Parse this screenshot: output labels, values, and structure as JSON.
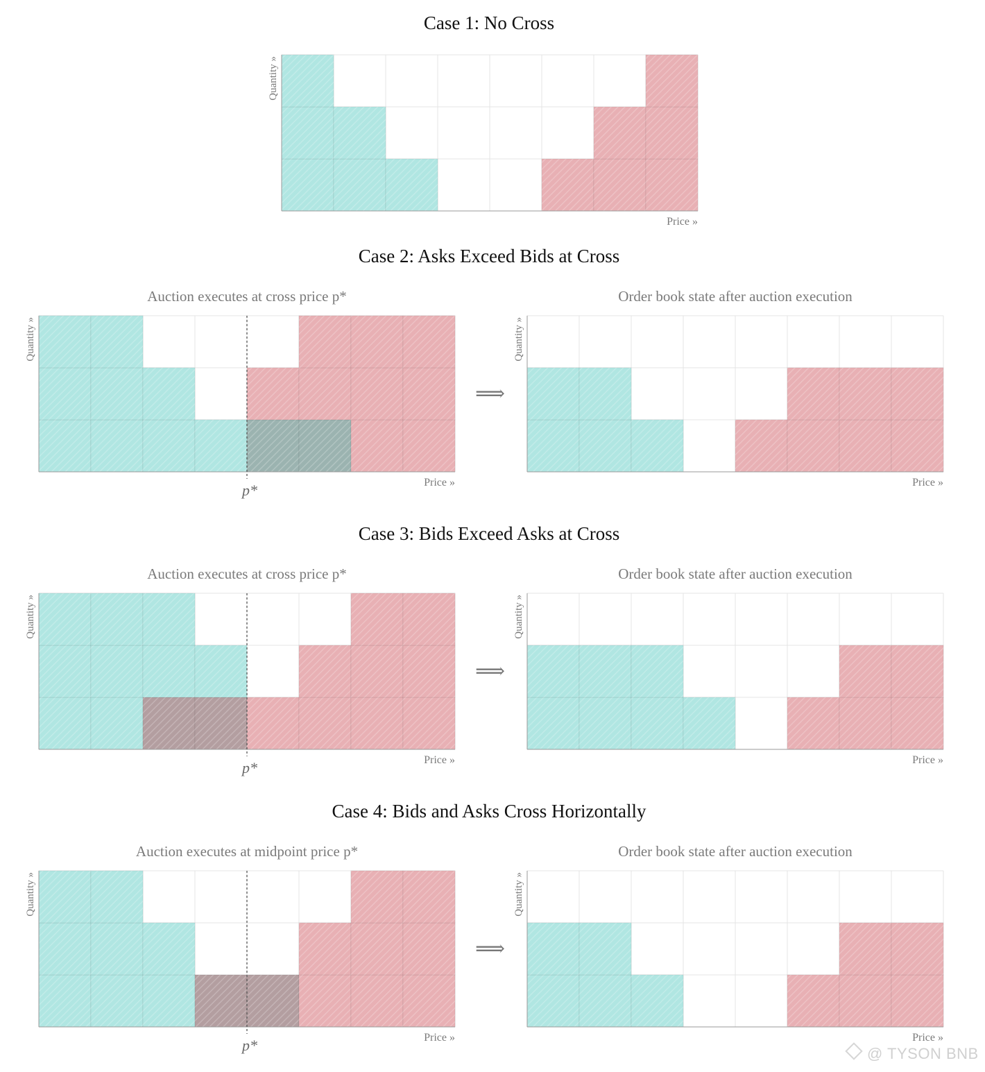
{
  "labels": {
    "quantity": "Quantity »",
    "price": "Price »",
    "arrow": "⟹",
    "pstar": "p*"
  },
  "colors": {
    "bid": "#b0e6e2",
    "ask": "#e8b0b4",
    "matched_case2": "#9bb3b0",
    "matched_case3": "#b39ea0",
    "grid": "#e4e4e4",
    "axis": "#9a9a9a"
  },
  "watermark": "@ TYSON BNB",
  "chart_data": [
    {
      "type": "heatmap",
      "title": "Case 1: No Cross",
      "xlabel": "Price »",
      "ylabel": "Quantity »",
      "columns": 8,
      "rows": 3,
      "bids": [
        3,
        2,
        1,
        0,
        0,
        0,
        0,
        0
      ],
      "asks": [
        0,
        0,
        0,
        0,
        0,
        1,
        2,
        3
      ],
      "matched": [
        0,
        0,
        0,
        0,
        0,
        0,
        0,
        0
      ],
      "cross_price_column": null
    },
    {
      "type": "heatmap",
      "case_title": "Case 2: Asks Exceed Bids at Cross",
      "title": "Auction executes at cross price p*",
      "xlabel": "Price »",
      "ylabel": "Quantity »",
      "columns": 8,
      "rows": 3,
      "bids": [
        3,
        3,
        2,
        1,
        0,
        0,
        0,
        0
      ],
      "asks": [
        0,
        0,
        0,
        0,
        2,
        3,
        3,
        3
      ],
      "matched": [
        0,
        0,
        0,
        0,
        1,
        1,
        0,
        0
      ],
      "cross_price_column": 4,
      "cross_label": "p*"
    },
    {
      "type": "heatmap",
      "title": "Order book state after auction execution",
      "xlabel": "Price »",
      "ylabel": "Quantity »",
      "columns": 8,
      "rows": 3,
      "bids": [
        2,
        2,
        1,
        0,
        0,
        0,
        0,
        0
      ],
      "asks": [
        0,
        0,
        0,
        0,
        1,
        2,
        2,
        2
      ],
      "matched": [
        0,
        0,
        0,
        0,
        0,
        0,
        0,
        0
      ],
      "cross_price_column": null
    },
    {
      "type": "heatmap",
      "case_title": "Case 3: Bids Exceed Asks at Cross",
      "title": "Auction executes at cross price p*",
      "xlabel": "Price »",
      "ylabel": "Quantity »",
      "columns": 8,
      "rows": 3,
      "bids": [
        3,
        3,
        3,
        2,
        0,
        0,
        0,
        0
      ],
      "asks": [
        0,
        0,
        0,
        0,
        1,
        2,
        3,
        3
      ],
      "matched": [
        0,
        0,
        1,
        1,
        0,
        0,
        0,
        0
      ],
      "cross_price_column": 4,
      "cross_label": "p*"
    },
    {
      "type": "heatmap",
      "title": "Order book state after auction execution",
      "xlabel": "Price »",
      "ylabel": "Quantity »",
      "columns": 8,
      "rows": 3,
      "bids": [
        2,
        2,
        2,
        1,
        0,
        0,
        0,
        0
      ],
      "asks": [
        0,
        0,
        0,
        0,
        0,
        1,
        2,
        2
      ],
      "matched": [
        0,
        0,
        0,
        0,
        0,
        0,
        0,
        0
      ],
      "cross_price_column": null
    },
    {
      "type": "heatmap",
      "case_title": "Case 4: Bids and Asks Cross Horizontally",
      "title": "Auction executes at midpoint price p*",
      "xlabel": "Price »",
      "ylabel": "Quantity »",
      "columns": 8,
      "rows": 3,
      "bids": [
        3,
        3,
        2,
        0,
        0,
        0,
        0,
        0
      ],
      "asks": [
        0,
        0,
        0,
        0,
        0,
        2,
        3,
        3
      ],
      "matched": [
        0,
        0,
        0,
        1,
        1,
        0,
        0,
        0
      ],
      "cross_price_column": 4,
      "cross_label": "p*"
    },
    {
      "type": "heatmap",
      "title": "Order book state after auction execution",
      "xlabel": "Price »",
      "ylabel": "Quantity »",
      "columns": 8,
      "rows": 3,
      "bids": [
        2,
        2,
        1,
        0,
        0,
        0,
        0,
        0
      ],
      "asks": [
        0,
        0,
        0,
        0,
        0,
        1,
        2,
        2
      ],
      "matched": [
        0,
        0,
        0,
        0,
        0,
        0,
        0,
        0
      ],
      "cross_price_column": null
    }
  ]
}
